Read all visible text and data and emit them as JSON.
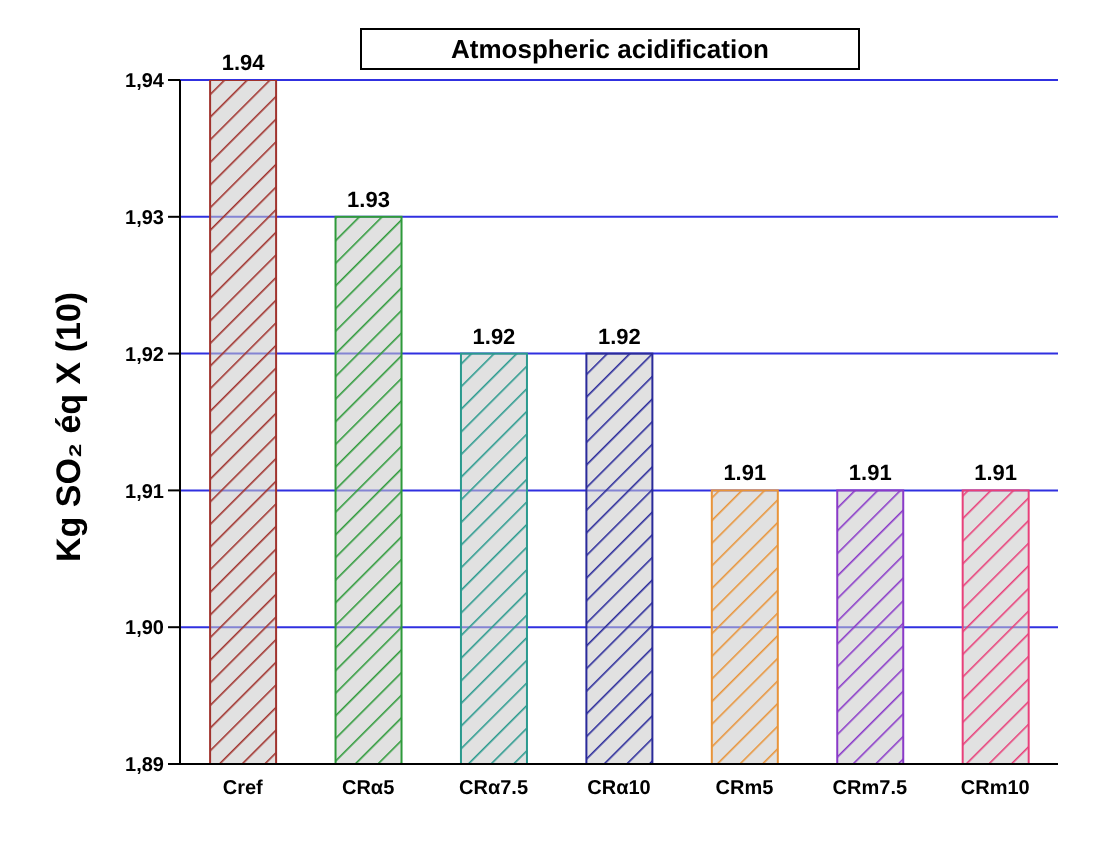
{
  "chart_data": {
    "type": "bar",
    "title": "Atmospheric acidification",
    "ylabel": "Kg SO₂ éq X (10)",
    "categories": [
      "Cref",
      "CRα5",
      "CRα7.5",
      "CRα10",
      "CRm5",
      "CRm7.5",
      "CRm10"
    ],
    "values": [
      1.94,
      1.93,
      1.92,
      1.92,
      1.91,
      1.91,
      1.91
    ],
    "colors": [
      "#a0322d",
      "#2e9a3a",
      "#2a9a8e",
      "#2a2a9a",
      "#e8943a",
      "#8a3ac8",
      "#e8407a"
    ],
    "ylim": [
      1.89,
      1.94
    ],
    "yticks": [
      {
        "value": 1.89,
        "label": "1,89"
      },
      {
        "value": 1.9,
        "label": "1,90"
      },
      {
        "value": 1.91,
        "label": "1,91"
      },
      {
        "value": 1.92,
        "label": "1,92"
      },
      {
        "value": 1.93,
        "label": "1,93"
      },
      {
        "value": 1.94,
        "label": "1,94"
      }
    ],
    "grid": "y",
    "data_labels": true
  }
}
